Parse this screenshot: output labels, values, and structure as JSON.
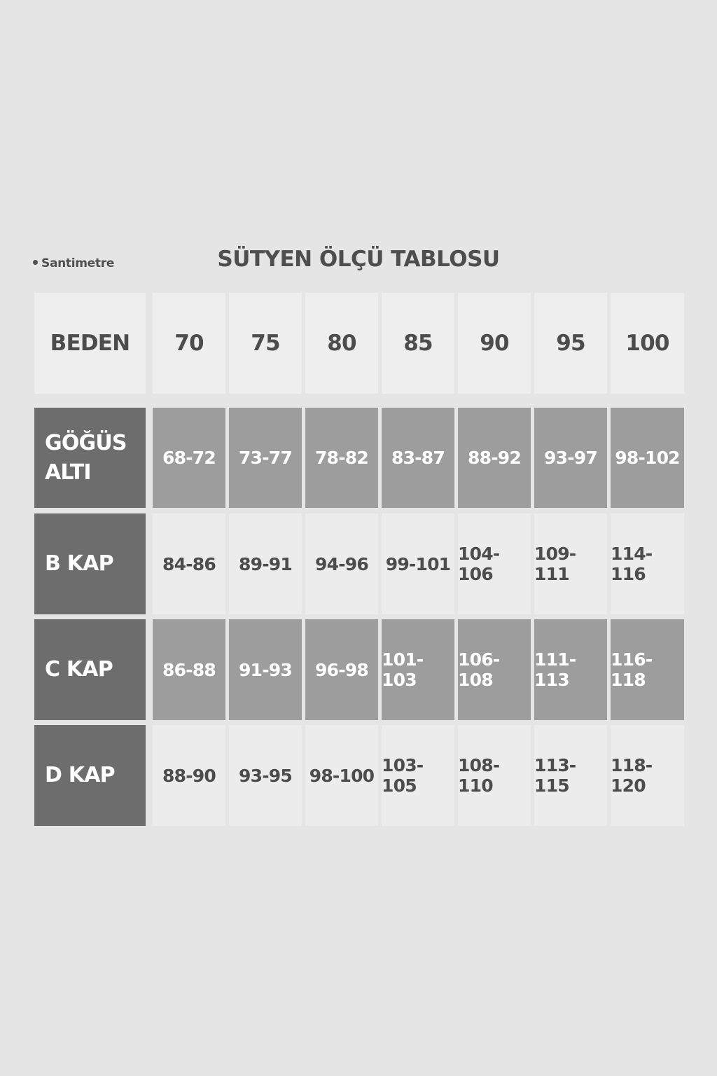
{
  "unit_note": "Santimetre",
  "title": "SÜTYEN ÖLÇÜ TABLOSU",
  "table": {
    "header": [
      "BEDEN",
      "70",
      "75",
      "80",
      "85",
      "90",
      "95",
      "100"
    ],
    "rows": [
      {
        "label": "GÖĞÜS ALTI",
        "values": [
          "68-72",
          "73-77",
          "78-82",
          "83-87",
          "88-92",
          "93-97",
          "98-102"
        ]
      },
      {
        "label": "B KAP",
        "values": [
          "84-86",
          "89-91",
          "94-96",
          "99-101",
          "104-106",
          "109-111",
          "114-116"
        ]
      },
      {
        "label": "C KAP",
        "values": [
          "86-88",
          "91-93",
          "96-98",
          "101-103",
          "106-108",
          "111-113",
          "116-118"
        ]
      },
      {
        "label": "D KAP",
        "values": [
          "88-90",
          "93-95",
          "98-100",
          "103-105",
          "108-110",
          "113-115",
          "118-120"
        ]
      }
    ]
  },
  "colors": {
    "background": "#e5e5e5",
    "label_cell": "#6d6d6d",
    "dark_row": "#9d9d9d",
    "light_row": "#ececec",
    "text": "#4c4c4c"
  }
}
